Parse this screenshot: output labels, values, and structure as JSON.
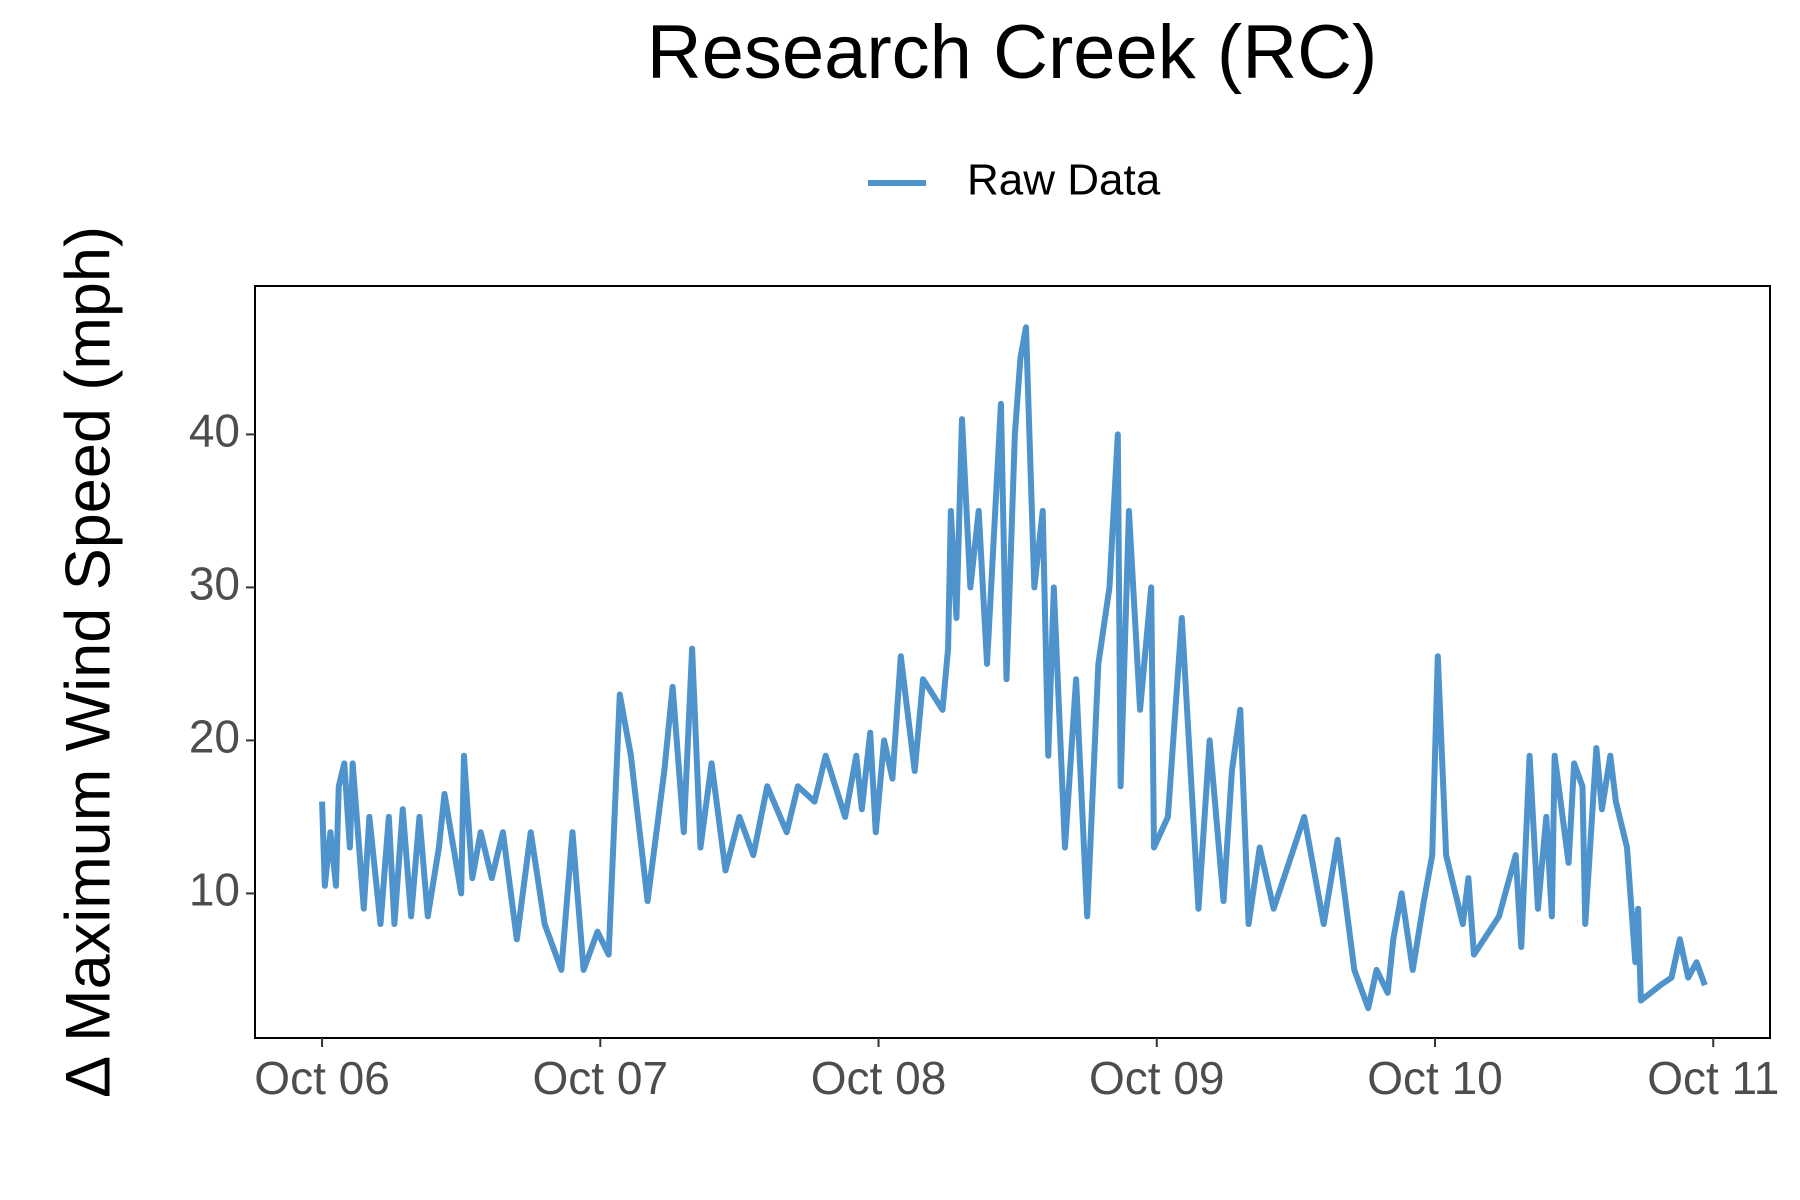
{
  "chart_data": {
    "type": "line",
    "title": "Research Creek (RC)",
    "y_label": "Δ Maximum Wind Speed (mph)",
    "legend": "top",
    "xlim": [
      -0.241,
      5.204
    ],
    "ylim": [
      0.55,
      49.7
    ],
    "xticks": [
      {
        "value": 0,
        "label": "Oct 06"
      },
      {
        "value": 1,
        "label": "Oct 07"
      },
      {
        "value": 2,
        "label": "Oct 08"
      },
      {
        "value": 3,
        "label": "Oct 09"
      },
      {
        "value": 4,
        "label": "Oct 10"
      },
      {
        "value": 5,
        "label": "Oct 11"
      }
    ],
    "yticks": [
      10,
      20,
      30,
      40
    ],
    "grid": false,
    "x": [
      0,
      0.01,
      0.03,
      0.05,
      0.06,
      0.08,
      0.1,
      0.11,
      0.15,
      0.17,
      0.21,
      0.24,
      0.26,
      0.29,
      0.32,
      0.35,
      0.38,
      0.42,
      0.44,
      0.5,
      0.51,
      0.54,
      0.57,
      0.61,
      0.65,
      0.7,
      0.75,
      0.8,
      0.86,
      0.9,
      0.94,
      0.99,
      1.03,
      1.07,
      1.11,
      1.17,
      1.23,
      1.26,
      1.3,
      1.33,
      1.36,
      1.4,
      1.45,
      1.5,
      1.55,
      1.6,
      1.67,
      1.71,
      1.77,
      1.81,
      1.88,
      1.92,
      1.94,
      1.97,
      1.99,
      2.02,
      2.05,
      2.08,
      2.13,
      2.16,
      2.23,
      2.25,
      2.26,
      2.28,
      2.3,
      2.33,
      2.36,
      2.39,
      2.44,
      2.46,
      2.49,
      2.51,
      2.53,
      2.56,
      2.59,
      2.61,
      2.63,
      2.67,
      2.71,
      2.75,
      2.79,
      2.83,
      2.86,
      2.87,
      2.9,
      2.94,
      2.98,
      2.99,
      3.04,
      3.09,
      3.15,
      3.19,
      3.24,
      3.27,
      3.3,
      3.33,
      3.37,
      3.42,
      3.53,
      3.6,
      3.65,
      3.71,
      3.76,
      3.79,
      3.83,
      3.85,
      3.88,
      3.92,
      3.96,
      3.99,
      4.01,
      4.04,
      4.1,
      4.12,
      4.14,
      4.23,
      4.29,
      4.31,
      4.34,
      4.37,
      4.4,
      4.42,
      4.43,
      4.48,
      4.5,
      4.53,
      4.54,
      4.58,
      4.6,
      4.63,
      4.65,
      4.69,
      4.72,
      4.73,
      4.74,
      4.81,
      4.85,
      4.88,
      4.91,
      4.94,
      4.97
    ],
    "series": [
      {
        "name": "Raw Data",
        "color": "#4f93cc",
        "values": [
          16,
          10.5,
          14,
          10.5,
          17,
          18.5,
          13,
          18.5,
          9,
          15,
          8,
          15,
          8,
          15.5,
          8.5,
          15,
          8.5,
          13,
          16.5,
          10,
          19,
          11,
          14,
          11,
          14,
          7,
          14,
          8,
          5,
          14,
          5,
          7.5,
          6,
          23,
          19,
          9.5,
          18,
          23.5,
          14,
          26,
          13,
          18.5,
          11.5,
          15,
          12.5,
          17,
          14,
          17,
          16,
          19,
          15,
          19,
          15.5,
          20.5,
          14,
          20,
          17.5,
          25.5,
          18,
          24,
          22,
          26,
          35,
          28,
          41,
          30,
          35,
          25,
          42,
          24,
          40,
          45,
          47,
          30,
          35,
          19,
          30,
          13,
          24,
          8.5,
          25,
          30,
          40,
          17,
          35,
          22,
          30,
          13,
          15,
          28,
          9,
          20,
          9.5,
          18,
          22,
          8,
          13,
          9,
          15,
          8,
          13.5,
          5,
          2.5,
          5,
          3.5,
          7,
          10,
          5,
          9.5,
          12.5,
          25.5,
          12.5,
          8,
          11,
          6,
          8.5,
          12.5,
          6.5,
          19,
          9,
          15,
          8.5,
          19,
          12,
          18.5,
          17,
          8,
          19.5,
          15.5,
          19,
          16,
          13,
          5.5,
          9,
          3,
          4,
          4.5,
          7,
          4.5,
          5.5,
          4
        ]
      }
    ]
  }
}
